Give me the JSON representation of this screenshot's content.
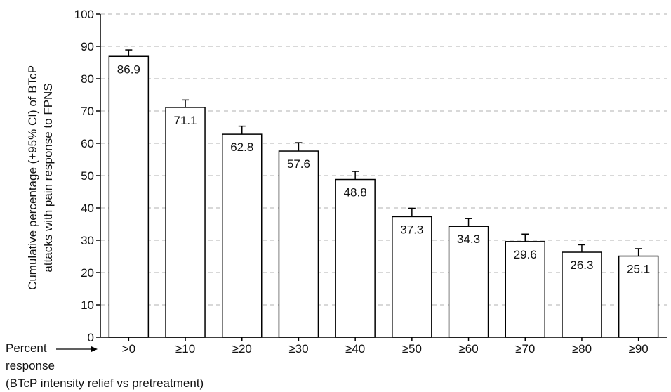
{
  "chart_data": {
    "type": "bar",
    "categories": [
      ">0",
      "≥10",
      "≥20",
      "≥30",
      "≥40",
      "≥50",
      "≥60",
      "≥70",
      "≥80",
      "≥90"
    ],
    "values": [
      86.9,
      71.1,
      62.8,
      57.6,
      48.8,
      37.3,
      34.3,
      29.6,
      26.3,
      25.1
    ],
    "ci_upper": [
      88.9,
      73.4,
      65.3,
      60.2,
      51.3,
      39.9,
      36.7,
      31.9,
      28.6,
      27.4
    ],
    "data_labels": [
      "86.9",
      "71.1",
      "62.8",
      "57.6",
      "48.8",
      "37.3",
      "34.3",
      "29.6",
      "26.3",
      "25.1"
    ],
    "ylim": [
      0,
      100
    ],
    "yticks": [
      0,
      10,
      20,
      30,
      40,
      50,
      60,
      70,
      80,
      90,
      100
    ],
    "ylabel_line1": "Cumulative percentage (+95% CI) of BTcP",
    "ylabel_line2": "attacks with pain response to FPNS",
    "xlabel_line1": "Percent",
    "xlabel_line2": "response",
    "xlabel_line3": "(BTcP intensity relief vs pretreatment)",
    "grid": "horizontal dashed",
    "colors": {
      "bar_fill": "#ffffff",
      "bar_stroke": "#000000",
      "grid": "#b0b0b0"
    }
  }
}
